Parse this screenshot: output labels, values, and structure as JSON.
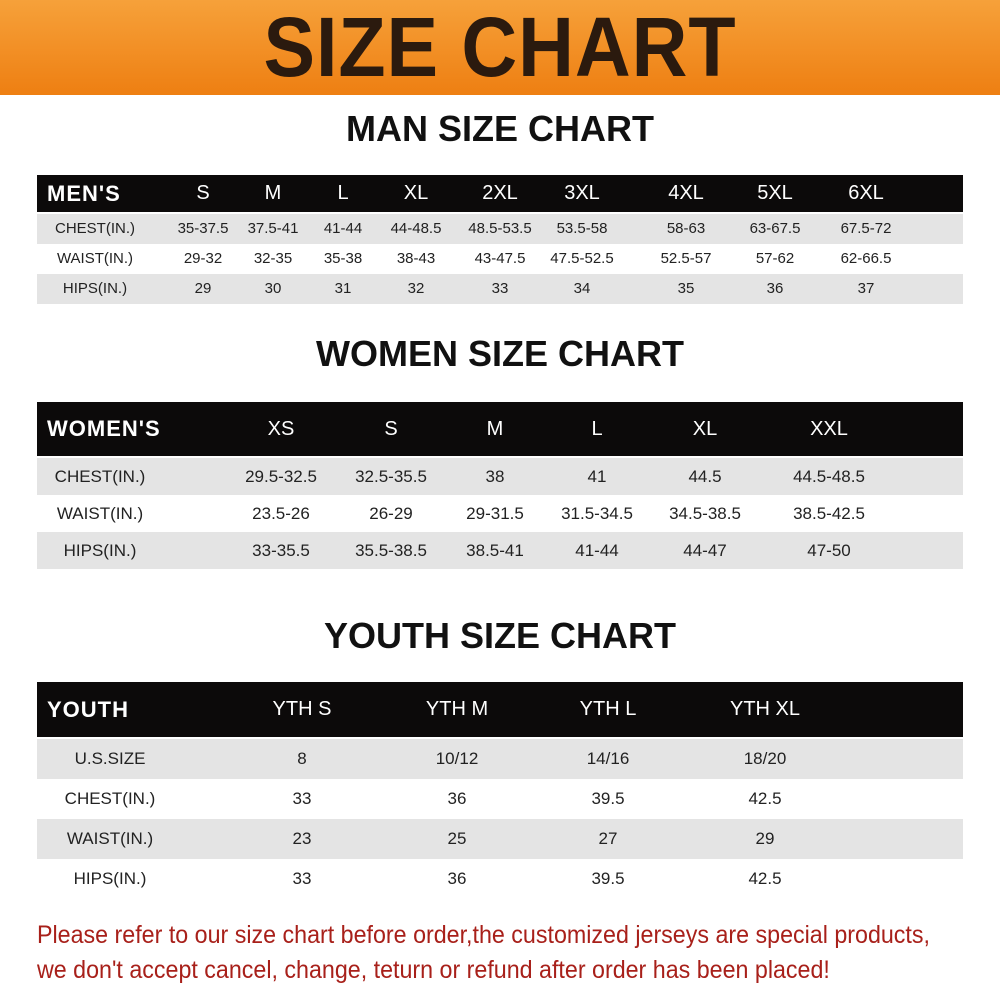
{
  "title": "SIZE CHART",
  "colors": {
    "banner": "#ef8518",
    "header_row": "#0c0a0a",
    "footer_text": "#a8201a"
  },
  "tables": [
    {
      "heading": "MAN SIZE CHART",
      "header": [
        "MEN'S",
        "S",
        "M",
        "L",
        "XL",
        "2XL",
        "3XL",
        "4XL",
        "5XL",
        "6XL"
      ],
      "rows": [
        [
          "CHEST(IN.)",
          "35-37.5",
          "37.5-41",
          "41-44",
          "44-48.5",
          "48.5-53.5",
          "53.5-58",
          "58-63",
          "63-67.5",
          "67.5-72"
        ],
        [
          "WAIST(IN.)",
          "29-32",
          "32-35",
          "35-38",
          "38-43",
          "43-47.5",
          "47.5-52.5",
          "52.5-57",
          "57-62",
          "62-66.5"
        ],
        [
          "HIPS(IN.)",
          "29",
          "30",
          "31",
          "32",
          "33",
          "34",
          "35",
          "36",
          "37"
        ]
      ]
    },
    {
      "heading": "WOMEN SIZE CHART",
      "header": [
        "WOMEN'S",
        "XS",
        "S",
        "M",
        "L",
        "XL",
        "XXL"
      ],
      "rows": [
        [
          "CHEST(IN.)",
          "29.5-32.5",
          "32.5-35.5",
          "38",
          "41",
          "44.5",
          "44.5-48.5"
        ],
        [
          "WAIST(IN.)",
          "23.5-26",
          "26-29",
          "29-31.5",
          "31.5-34.5",
          "34.5-38.5",
          "38.5-42.5"
        ],
        [
          "HIPS(IN.)",
          "33-35.5",
          "35.5-38.5",
          "38.5-41",
          "41-44",
          "44-47",
          "47-50"
        ]
      ]
    },
    {
      "heading": "YOUTH SIZE CHART",
      "header": [
        "YOUTH",
        "YTH S",
        "YTH M",
        "YTH L",
        "YTH XL"
      ],
      "rows": [
        [
          "U.S.SIZE",
          "8",
          "10/12",
          "14/16",
          "18/20"
        ],
        [
          "CHEST(IN.)",
          "33",
          "36",
          "39.5",
          "42.5"
        ],
        [
          "WAIST(IN.)",
          "23",
          "25",
          "27",
          "29"
        ],
        [
          "HIPS(IN.)",
          "33",
          "36",
          "39.5",
          "42.5"
        ]
      ]
    }
  ],
  "footer": {
    "line1": "Please refer to our size chart before order,the customized jerseys are special products,",
    "line2": "we don't accept cancel, change, teturn or refund after order has been placed!"
  }
}
